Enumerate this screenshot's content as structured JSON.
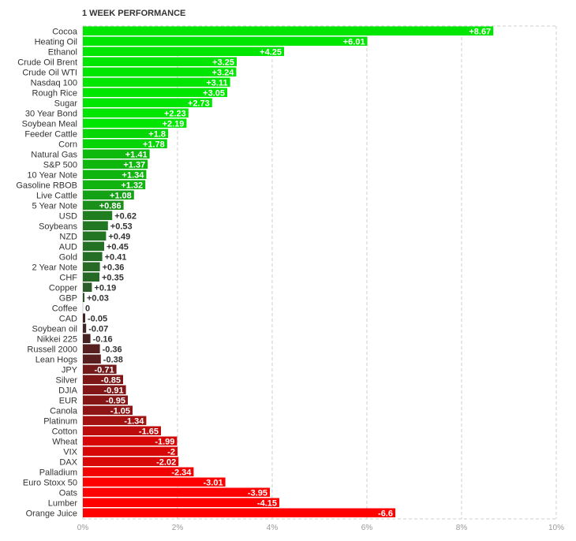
{
  "chart_data": {
    "type": "bar",
    "orientation": "horizontal",
    "title": "1 WEEK PERFORMANCE",
    "xlabel": "",
    "ylabel": "",
    "xlim": [
      -6.6,
      10
    ],
    "x_tick_values": [
      0,
      2,
      4,
      6,
      8,
      10
    ],
    "x_tick_labels": [
      "0%",
      "2%",
      "4%",
      "6%",
      "8%",
      "10%"
    ],
    "grid": true,
    "categories": [
      "Cocoa",
      "Heating Oil",
      "Ethanol",
      "Crude Oil Brent",
      "Crude Oil WTI",
      "Nasdaq 100",
      "Rough Rice",
      "Sugar",
      "30 Year Bond",
      "Soybean Meal",
      "Feeder Cattle",
      "Corn",
      "Natural Gas",
      "S&P 500",
      "10 Year Note",
      "Gasoline RBOB",
      "Live Cattle",
      "5 Year Note",
      "USD",
      "Soybeans",
      "NZD",
      "AUD",
      "Gold",
      "2 Year Note",
      "CHF",
      "Copper",
      "GBP",
      "Coffee",
      "CAD",
      "Soybean oil",
      "Nikkei 225",
      "Russell 2000",
      "Lean Hogs",
      "JPY",
      "Silver",
      "DJIA",
      "EUR",
      "Canola",
      "Platinum",
      "Cotton",
      "Wheat",
      "VIX",
      "DAX",
      "Palladium",
      "Euro Stoxx 50",
      "Oats",
      "Lumber",
      "Orange Juice"
    ],
    "values": [
      8.67,
      6.01,
      4.25,
      3.25,
      3.24,
      3.11,
      3.05,
      2.73,
      2.23,
      2.19,
      1.8,
      1.78,
      1.41,
      1.37,
      1.34,
      1.32,
      1.08,
      0.86,
      0.62,
      0.53,
      0.49,
      0.45,
      0.41,
      0.36,
      0.35,
      0.19,
      0.03,
      0,
      -0.05,
      -0.07,
      -0.16,
      -0.36,
      -0.38,
      -0.71,
      -0.85,
      -0.91,
      -0.95,
      -1.05,
      -1.34,
      -1.65,
      -1.99,
      -2,
      -2.02,
      -2.34,
      -3.01,
      -3.95,
      -4.15,
      -6.6
    ],
    "value_labels": [
      "+8.67",
      "+6.01",
      "+4.25",
      "+3.25",
      "+3.24",
      "+3.11",
      "+3.05",
      "+2.73",
      "+2.23",
      "+2.19",
      "+1.8",
      "+1.78",
      "+1.41",
      "+1.37",
      "+1.34",
      "+1.32",
      "+1.08",
      "+0.86",
      "+0.62",
      "+0.53",
      "+0.49",
      "+0.45",
      "+0.41",
      "+0.36",
      "+0.35",
      "+0.19",
      "+0.03",
      "0",
      "-0.05",
      "-0.07",
      "-0.16",
      "-0.36",
      "-0.38",
      "-0.71",
      "-0.85",
      "-0.91",
      "-0.95",
      "-1.05",
      "-1.34",
      "-1.65",
      "-1.99",
      "-2",
      "-2.02",
      "-2.34",
      "-3.01",
      "-3.95",
      "-4.15",
      "-6.6"
    ],
    "colors": {
      "positive_strong": "#00e600",
      "positive_weak": "#2e4f2e",
      "negative_weak": "#3b2424",
      "negative_strong": "#ff0000",
      "grid": "#cccccc",
      "axis_tick": "#9a9a9a"
    }
  }
}
